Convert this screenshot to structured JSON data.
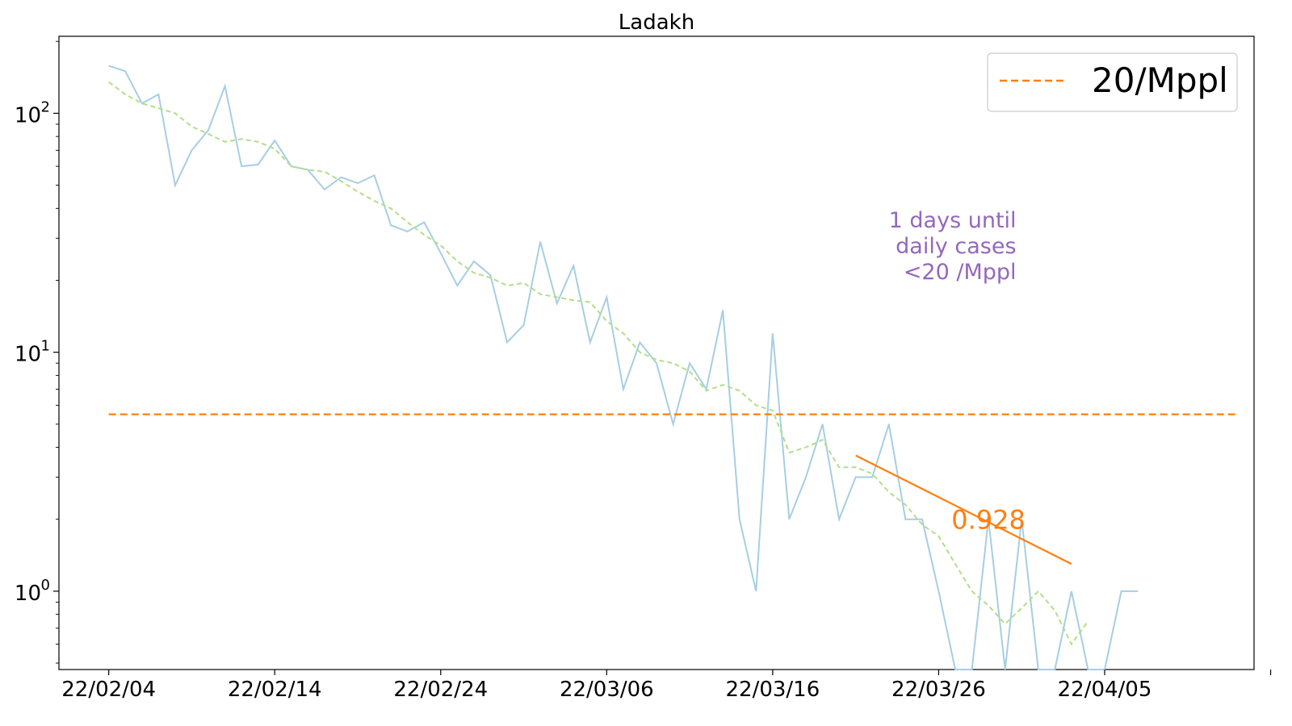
{
  "chart_data": {
    "type": "line",
    "title": "Ladakh",
    "xlabel": "",
    "ylabel": "",
    "yscale": "log",
    "ylim": [
      0.47,
      210
    ],
    "xlim": [
      "2022-02-01",
      "2022-04-14"
    ],
    "x_tick_labels": [
      {
        "date": "2022-02-04",
        "label": "22/02/04"
      },
      {
        "date": "2022-02-14",
        "label": "22/02/14"
      },
      {
        "date": "2022-02-24",
        "label": "22/02/24"
      },
      {
        "date": "2022-03-06",
        "label": "22/03/06"
      },
      {
        "date": "2022-03-16",
        "label": "22/03/16"
      },
      {
        "date": "2022-03-26",
        "label": "22/03/26"
      },
      {
        "date": "2022-04-05",
        "label": "22/04/05"
      },
      {
        "date": "2022-04-15",
        "label": ""
      }
    ],
    "y_ticks": [
      {
        "value": 1,
        "base": "10",
        "exp": "0"
      },
      {
        "value": 10,
        "base": "10",
        "exp": "1"
      },
      {
        "value": 100,
        "base": "10",
        "exp": "2"
      }
    ],
    "grid": false,
    "legend": {
      "position": "top-right",
      "entries": [
        {
          "label": "20/Mppl",
          "color": "#ff7f0e",
          "style": "dashed"
        }
      ]
    },
    "series": [
      {
        "style": "solid",
        "color": "#a6cee3",
        "start_date": "2022-02-04",
        "values": [
          158,
          150,
          110,
          120,
          50,
          70,
          85,
          130,
          60,
          61,
          77,
          60,
          58,
          48,
          54,
          51,
          55,
          34,
          32,
          35,
          26,
          19,
          24,
          21,
          11,
          13,
          29,
          16,
          23,
          11,
          17,
          7,
          11,
          9,
          5,
          9,
          7,
          15,
          2,
          1,
          12,
          2,
          3,
          5,
          2,
          3,
          3,
          5,
          2,
          2,
          1,
          0,
          0,
          2,
          0,
          2,
          0,
          0,
          1,
          0,
          0,
          1,
          1
        ]
      },
      {
        "style": "dashed",
        "color": "#b2df8a",
        "start_date": "2022-02-04",
        "values": [
          135,
          120,
          110,
          105,
          100,
          88,
          82,
          76,
          78,
          76,
          71,
          60,
          58,
          57,
          52,
          47,
          43,
          40,
          35,
          31,
          28,
          24,
          21.5,
          20.5,
          19,
          19.5,
          17.5,
          17,
          16.5,
          16.2,
          13.5,
          12,
          10,
          9.3,
          9,
          8.3,
          6.9,
          7.3,
          6.9,
          6,
          5.7,
          3.8,
          4,
          4.3,
          3.3,
          3.3,
          3.1,
          2.6,
          2.3,
          1.9,
          1.7,
          1.3,
          1.0,
          0.87,
          0.73,
          0.85,
          1.0,
          0.83,
          0.6,
          0.75
        ]
      },
      {
        "name": "20/Mppl",
        "style": "dashed",
        "color": "#ff7f0e",
        "x": [
          "2022-02-04",
          "2022-04-13"
        ],
        "values": [
          5.5,
          5.5
        ]
      },
      {
        "style": "solid",
        "color": "#ff7f0e",
        "x": [
          "2022-03-21",
          "2022-04-03"
        ],
        "values": [
          3.7,
          1.3
        ]
      }
    ],
    "annotations": [
      {
        "text": "0.928",
        "color": "#ff7f0e",
        "x": "2022-03-29",
        "y": 2.0
      },
      {
        "lines": [
          "1 days until",
          "daily cases",
          "<20 /Mppl"
        ],
        "color": "#9467bd",
        "x": "2022-03-28",
        "y": 30
      }
    ]
  }
}
